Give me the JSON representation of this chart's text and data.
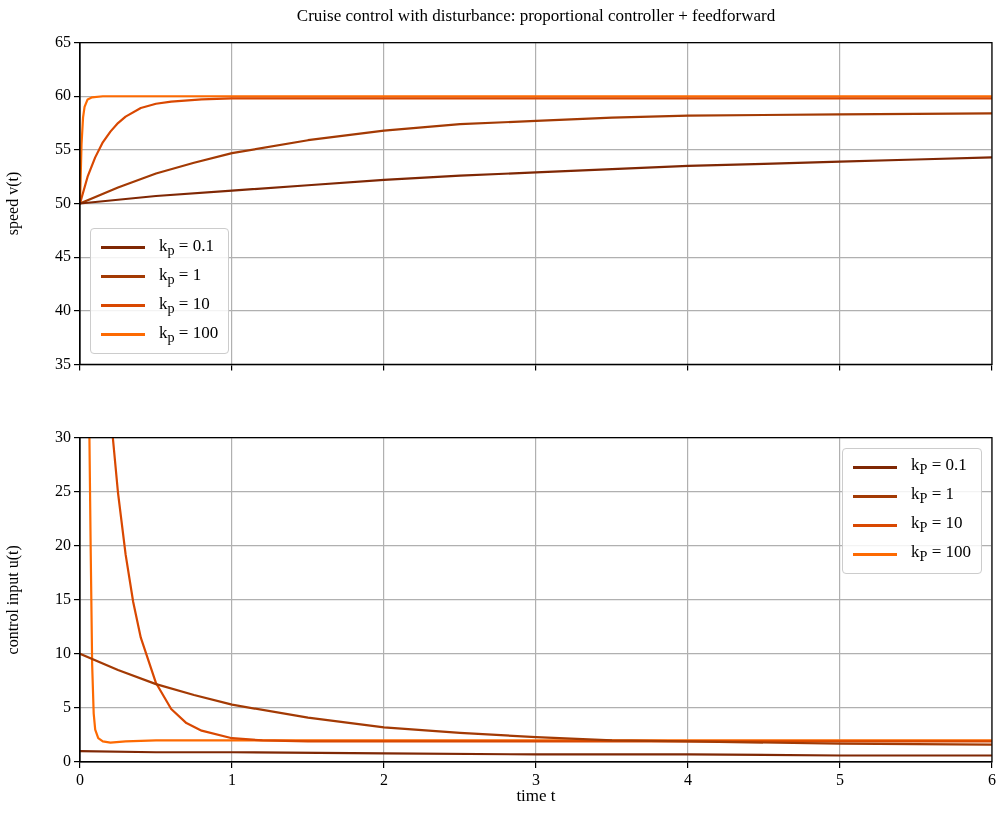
{
  "chart_data": [
    {
      "type": "line",
      "title": "Cruise control with disturbance: proportional controller + feedforward",
      "ylabel": "speed v(t)",
      "xlim": [
        0,
        6
      ],
      "xticks": [
        0,
        1,
        2,
        3,
        4,
        5,
        6
      ],
      "ylim": [
        35,
        65
      ],
      "yticks": [
        35,
        40,
        45,
        50,
        55,
        60,
        65
      ],
      "grid": true,
      "legend": "bottom left",
      "tick_labels": "y",
      "series": [
        {
          "name": "k$_{p}$ = 0.1",
          "color": "#7f2704",
          "x": [
            0,
            0.5,
            1,
            1.5,
            2,
            2.5,
            3,
            3.5,
            4,
            4.5,
            5,
            5.5,
            6
          ],
          "values": [
            50,
            50.7,
            51.2,
            51.7,
            52.2,
            52.6,
            52.9,
            53.2,
            53.5,
            53.7,
            53.9,
            54.1,
            54.3
          ]
        },
        {
          "name": "k$_{p}$ = 1",
          "color": "#a33a04",
          "x": [
            0,
            0.25,
            0.5,
            0.75,
            1,
            1.5,
            2,
            2.5,
            3,
            3.5,
            4,
            5,
            6
          ],
          "values": [
            50,
            51.5,
            52.8,
            53.8,
            54.7,
            55.9,
            56.8,
            57.4,
            57.7,
            58,
            58.2,
            58.3,
            58.4
          ]
        },
        {
          "name": "k$_{p}$ = 10",
          "color": "#d94801",
          "x": [
            0,
            0.05,
            0.1,
            0.15,
            0.2,
            0.25,
            0.3,
            0.4,
            0.5,
            0.6,
            0.8,
            1,
            1.5,
            6
          ],
          "values": [
            50,
            52.5,
            54.3,
            55.7,
            56.7,
            57.5,
            58.1,
            58.9,
            59.3,
            59.5,
            59.7,
            59.8,
            59.8,
            59.8
          ]
        },
        {
          "name": "k$_{p}$ = 100",
          "color": "#fd6a02",
          "x": [
            0,
            0.01,
            0.02,
            0.03,
            0.05,
            0.08,
            0.15,
            6
          ],
          "values": [
            50,
            55.5,
            58,
            59,
            59.7,
            59.9,
            60,
            60
          ]
        }
      ]
    },
    {
      "type": "line",
      "xlabel": "time t",
      "ylabel": "control input u(t)",
      "xlim": [
        0,
        6
      ],
      "xticks": [
        0,
        1,
        2,
        3,
        4,
        5,
        6
      ],
      "ylim": [
        0,
        30
      ],
      "yticks": [
        0,
        5,
        10,
        15,
        20,
        25,
        30
      ],
      "grid": true,
      "legend": "top right",
      "series": [
        {
          "name": "k$_{P}$ = 0.1",
          "color": "#7f2704",
          "x": [
            0,
            0.5,
            1,
            2,
            3,
            4,
            5,
            6
          ],
          "values": [
            1,
            0.9,
            0.9,
            0.8,
            0.7,
            0.7,
            0.6,
            0.6
          ]
        },
        {
          "name": "k$_{P}$ = 1",
          "color": "#a33a04",
          "x": [
            0,
            0.25,
            0.5,
            0.75,
            1,
            1.5,
            2,
            2.5,
            3,
            3.5,
            4,
            5,
            6
          ],
          "values": [
            10,
            8.5,
            7.2,
            6.2,
            5.3,
            4.1,
            3.2,
            2.7,
            2.3,
            2,
            1.9,
            1.7,
            1.6
          ]
        },
        {
          "name": "k$_{P}$ = 10",
          "color": "#d94801",
          "x": [
            0.216,
            0.25,
            0.3,
            0.35,
            0.4,
            0.5,
            0.6,
            0.7,
            0.8,
            1,
            1.2,
            1.5,
            6
          ],
          "values": [
            30,
            24.9,
            19.2,
            14.8,
            11.5,
            7.3,
            4.9,
            3.6,
            2.9,
            2.2,
            2,
            1.9,
            1.9
          ]
        },
        {
          "name": "k$_{P}$ = 100",
          "color": "#fd6a02",
          "x": [
            0.062,
            0.07,
            0.08,
            0.09,
            0.1,
            0.12,
            0.15,
            0.2,
            0.3,
            0.5,
            6
          ],
          "values": [
            30,
            20,
            9,
            4.5,
            3,
            2.2,
            1.9,
            1.8,
            1.9,
            2,
            2
          ]
        }
      ]
    }
  ]
}
